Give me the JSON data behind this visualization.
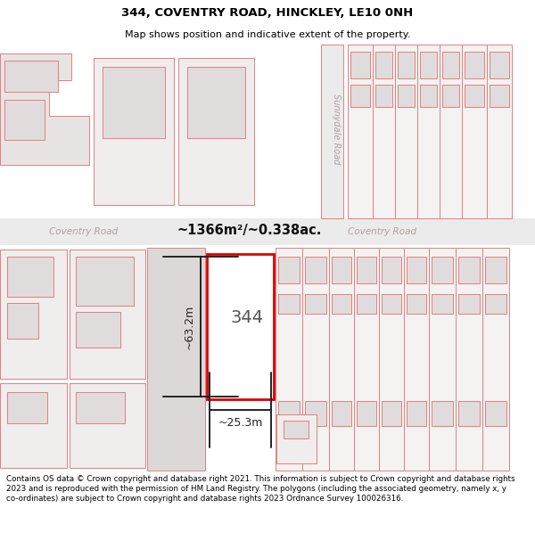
{
  "title": "344, COVENTRY ROAD, HINCKLEY, LE10 0NH",
  "subtitle": "Map shows position and indicative extent of the property.",
  "footer": "Contains OS data © Crown copyright and database right 2021. This information is subject to Crown copyright and database rights 2023 and is reproduced with the permission of HM Land Registry. The polygons (including the associated geometry, namely x, y co-ordinates) are subject to Crown copyright and database rights 2023 Ordnance Survey 100026316.",
  "area_label": "~1366m²/~0.338ac.",
  "width_label": "~25.3m",
  "height_label": "~63.2m",
  "number_label": "344",
  "map_bg": "#ffffff",
  "road_band_color": "#eeeeee",
  "building_fill": "#e0dcdc",
  "cadastral_stroke": "#e08080",
  "highlight_stroke": "#dd0000",
  "dim_color": "#222222",
  "road_text_color": "#aaaaaa",
  "area_text_color": "#111111",
  "title_fontsize": 9.5,
  "subtitle_fontsize": 8,
  "footer_fontsize": 6.3
}
